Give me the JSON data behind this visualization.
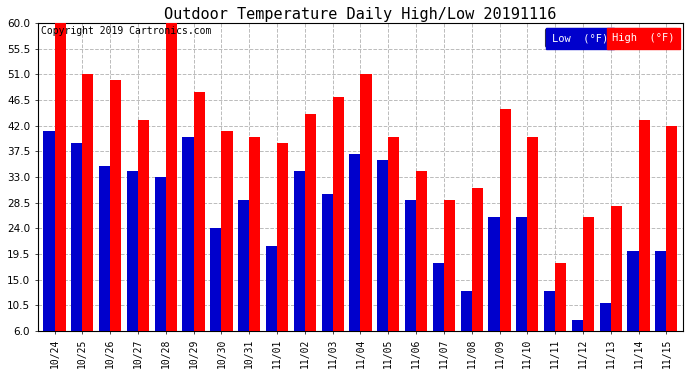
{
  "title": "Outdoor Temperature Daily High/Low 20191116",
  "copyright": "Copyright 2019 Cartronics.com",
  "legend_low": "Low  (°F)",
  "legend_high": "High  (°F)",
  "categories": [
    "10/24",
    "10/25",
    "10/26",
    "10/27",
    "10/28",
    "10/29",
    "10/30",
    "10/31",
    "11/01",
    "11/02",
    "11/03",
    "11/04",
    "11/05",
    "11/06",
    "11/07",
    "11/08",
    "11/09",
    "11/10",
    "11/11",
    "11/12",
    "11/13",
    "11/14",
    "11/15"
  ],
  "low_values": [
    41,
    39,
    35,
    34,
    33,
    40,
    24,
    29,
    21,
    34,
    30,
    37,
    36,
    29,
    18,
    13,
    26,
    26,
    13,
    8,
    11,
    20,
    20
  ],
  "high_values": [
    60,
    51,
    50,
    43,
    60,
    48,
    41,
    40,
    39,
    44,
    47,
    51,
    40,
    34,
    29,
    31,
    45,
    40,
    18,
    26,
    28,
    43,
    42
  ],
  "ylim_min": 6.0,
  "ylim_max": 60.0,
  "yticks": [
    6.0,
    10.5,
    15.0,
    19.5,
    24.0,
    28.5,
    33.0,
    37.5,
    42.0,
    46.5,
    51.0,
    55.5,
    60.0
  ],
  "low_color": "#0000cc",
  "high_color": "#ff0000",
  "background_color": "#ffffff",
  "grid_color": "#bbbbbb",
  "title_fontsize": 11,
  "copyright_fontsize": 7,
  "bar_width": 0.4
}
